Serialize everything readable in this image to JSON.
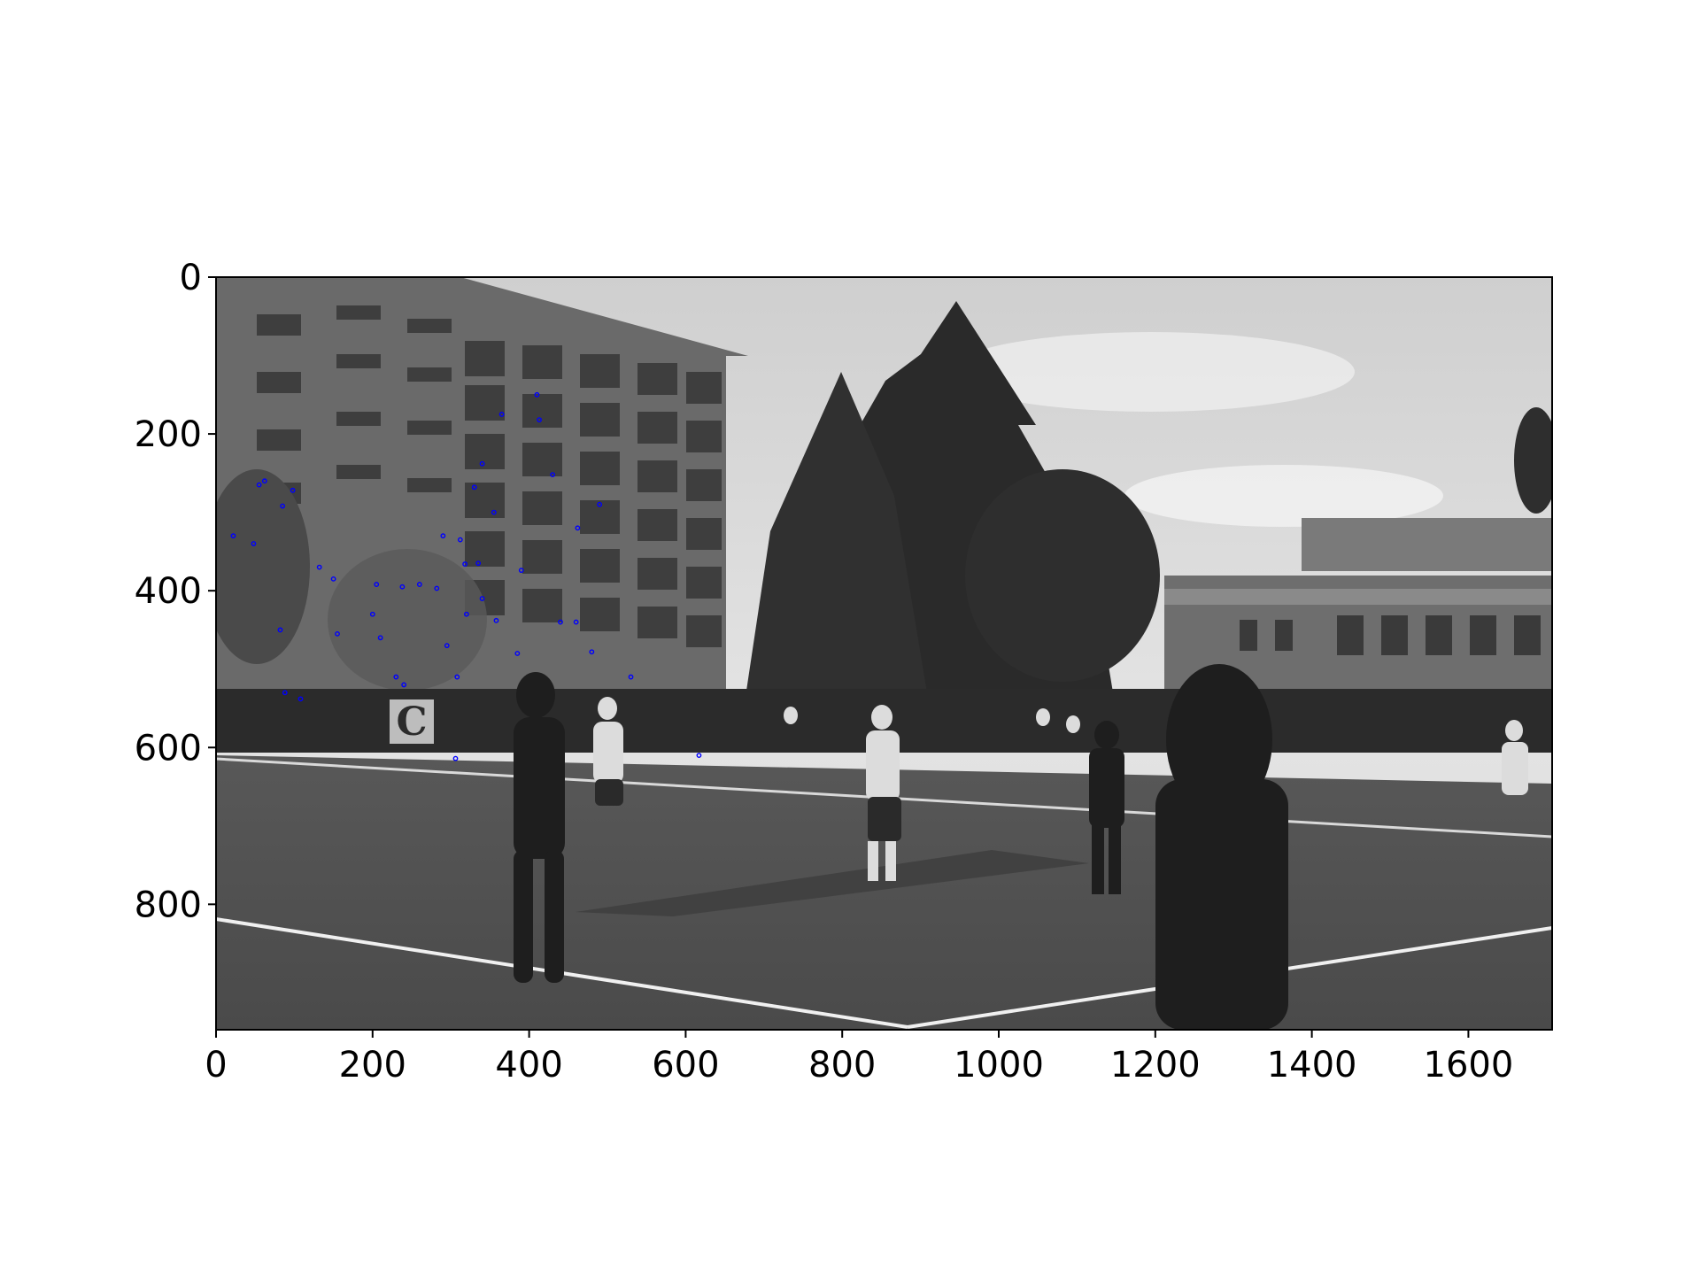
{
  "chart_data": {
    "type": "scatter",
    "title": "",
    "xlabel": "",
    "ylabel": "",
    "background": "grayscale photograph of a field hockey match on an artificial turf field with buildings and trees",
    "xlim": [
      0,
      1707
    ],
    "ylim": [
      960,
      0
    ],
    "x_ticks": [
      0,
      200,
      400,
      600,
      800,
      1000,
      1200,
      1400,
      1600
    ],
    "y_ticks": [
      0,
      200,
      400,
      600,
      800
    ],
    "grid": false,
    "point_color": "#0000ff",
    "series": [
      {
        "points": [
          [
            22,
            330
          ],
          [
            48,
            340
          ],
          [
            55,
            265
          ],
          [
            62,
            260
          ],
          [
            85,
            292
          ],
          [
            98,
            272
          ],
          [
            82,
            450
          ],
          [
            88,
            530
          ],
          [
            108,
            538
          ],
          [
            132,
            370
          ],
          [
            150,
            385
          ],
          [
            155,
            455
          ],
          [
            200,
            430
          ],
          [
            205,
            392
          ],
          [
            210,
            460
          ],
          [
            230,
            510
          ],
          [
            238,
            395
          ],
          [
            240,
            520
          ],
          [
            260,
            392
          ],
          [
            282,
            397
          ],
          [
            290,
            330
          ],
          [
            295,
            470
          ],
          [
            308,
            510
          ],
          [
            312,
            335
          ],
          [
            318,
            366
          ],
          [
            320,
            430
          ],
          [
            330,
            268
          ],
          [
            335,
            365
          ],
          [
            340,
            410
          ],
          [
            340,
            238
          ],
          [
            355,
            300
          ],
          [
            358,
            438
          ],
          [
            365,
            175
          ],
          [
            385,
            480
          ],
          [
            390,
            374
          ],
          [
            410,
            150
          ],
          [
            413,
            182
          ],
          [
            430,
            252
          ],
          [
            440,
            440
          ],
          [
            460,
            440
          ],
          [
            462,
            320
          ],
          [
            480,
            478
          ],
          [
            490,
            290
          ],
          [
            530,
            510
          ],
          [
            306,
            614
          ],
          [
            617,
            610
          ]
        ]
      }
    ]
  }
}
